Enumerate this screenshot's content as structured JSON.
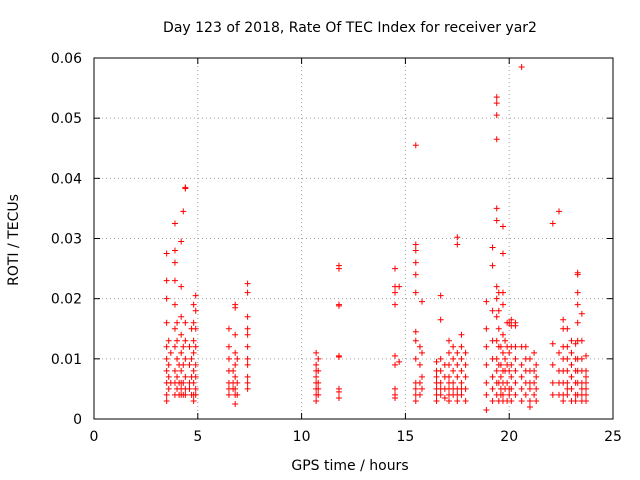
{
  "chart_data": {
    "type": "scatter",
    "title": "Day 123 of 2018, Rate Of TEC Index for receiver yar2",
    "xlabel": "GPS time / hours",
    "ylabel": "ROTI / TECUs",
    "xlim": [
      0,
      25
    ],
    "ylim": [
      0,
      0.06
    ],
    "x_ticks": [
      0,
      5,
      10,
      15,
      20,
      25
    ],
    "x_tick_labels": [
      "0",
      "5",
      "10",
      "15",
      "20",
      "25"
    ],
    "y_ticks": [
      0,
      0.01,
      0.02,
      0.03,
      0.04,
      0.05,
      0.06
    ],
    "y_tick_labels": [
      "0",
      "0.01",
      "0.02",
      "0.03",
      "0.04",
      "0.05",
      "0.06"
    ],
    "grid": true,
    "marker": "plus",
    "series_color": "#ff0000",
    "points": [
      [
        3.5,
        0.0275
      ],
      [
        3.5,
        0.023
      ],
      [
        3.5,
        0.02
      ],
      [
        3.5,
        0.016
      ],
      [
        3.5,
        0.012
      ],
      [
        3.5,
        0.01
      ],
      [
        3.5,
        0.008
      ],
      [
        3.5,
        0.006
      ],
      [
        3.5,
        0.004
      ],
      [
        3.5,
        0.003
      ],
      [
        3.6,
        0.013
      ],
      [
        3.6,
        0.009
      ],
      [
        3.6,
        0.007
      ],
      [
        3.6,
        0.005
      ],
      [
        3.7,
        0.011
      ],
      [
        3.7,
        0.006
      ],
      [
        3.9,
        0.0325
      ],
      [
        3.9,
        0.028
      ],
      [
        3.9,
        0.026
      ],
      [
        3.9,
        0.023
      ],
      [
        3.9,
        0.019
      ],
      [
        3.9,
        0.015
      ],
      [
        3.9,
        0.012
      ],
      [
        3.9,
        0.008
      ],
      [
        3.9,
        0.006
      ],
      [
        3.9,
        0.004
      ],
      [
        4.0,
        0.016
      ],
      [
        4.0,
        0.013
      ],
      [
        4.0,
        0.01
      ],
      [
        4.0,
        0.007
      ],
      [
        4.0,
        0.005
      ],
      [
        4.1,
        0.009
      ],
      [
        4.1,
        0.006
      ],
      [
        4.1,
        0.004
      ],
      [
        4.2,
        0.0295
      ],
      [
        4.2,
        0.022
      ],
      [
        4.2,
        0.017
      ],
      [
        4.2,
        0.014
      ],
      [
        4.2,
        0.011
      ],
      [
        4.2,
        0.008
      ],
      [
        4.2,
        0.006
      ],
      [
        4.2,
        0.005
      ],
      [
        4.2,
        0.004
      ],
      [
        4.3,
        0.0345
      ],
      [
        4.3,
        0.012
      ],
      [
        4.3,
        0.009
      ],
      [
        4.3,
        0.006
      ],
      [
        4.3,
        0.004
      ],
      [
        4.4,
        0.0385
      ],
      [
        4.4,
        0.0383
      ],
      [
        4.4,
        0.016
      ],
      [
        4.4,
        0.013
      ],
      [
        4.4,
        0.01
      ],
      [
        4.4,
        0.007
      ],
      [
        4.4,
        0.005
      ],
      [
        4.4,
        0.004
      ],
      [
        4.6,
        0.012
      ],
      [
        4.6,
        0.009
      ],
      [
        4.6,
        0.006
      ],
      [
        4.6,
        0.005
      ],
      [
        4.7,
        0.015
      ],
      [
        4.7,
        0.01
      ],
      [
        4.7,
        0.007
      ],
      [
        4.7,
        0.004
      ],
      [
        4.8,
        0.019
      ],
      [
        4.8,
        0.016
      ],
      [
        4.8,
        0.013
      ],
      [
        4.8,
        0.011
      ],
      [
        4.8,
        0.008
      ],
      [
        4.8,
        0.006
      ],
      [
        4.8,
        0.004
      ],
      [
        4.8,
        0.003
      ],
      [
        4.9,
        0.0205
      ],
      [
        4.9,
        0.018
      ],
      [
        4.9,
        0.015
      ],
      [
        4.9,
        0.012
      ],
      [
        4.9,
        0.009
      ],
      [
        4.9,
        0.007
      ],
      [
        4.9,
        0.005
      ],
      [
        4.9,
        0.004
      ],
      [
        6.5,
        0.015
      ],
      [
        6.5,
        0.012
      ],
      [
        6.5,
        0.01
      ],
      [
        6.5,
        0.008
      ],
      [
        6.5,
        0.006
      ],
      [
        6.5,
        0.005
      ],
      [
        6.5,
        0.004
      ],
      [
        6.7,
        0.008
      ],
      [
        6.7,
        0.006
      ],
      [
        6.7,
        0.005
      ],
      [
        6.8,
        0.019
      ],
      [
        6.8,
        0.0185
      ],
      [
        6.8,
        0.014
      ],
      [
        6.8,
        0.011
      ],
      [
        6.8,
        0.009
      ],
      [
        6.8,
        0.007
      ],
      [
        6.8,
        0.005
      ],
      [
        6.8,
        0.004
      ],
      [
        6.8,
        0.0025
      ],
      [
        6.9,
        0.01
      ],
      [
        6.9,
        0.006
      ],
      [
        6.9,
        0.004
      ],
      [
        7.4,
        0.0225
      ],
      [
        7.4,
        0.021
      ],
      [
        7.4,
        0.017
      ],
      [
        7.4,
        0.015
      ],
      [
        7.4,
        0.014
      ],
      [
        7.4,
        0.012
      ],
      [
        7.4,
        0.01
      ],
      [
        7.4,
        0.009
      ],
      [
        7.4,
        0.007
      ],
      [
        7.4,
        0.006
      ],
      [
        7.4,
        0.005
      ],
      [
        10.7,
        0.011
      ],
      [
        10.7,
        0.009
      ],
      [
        10.7,
        0.008
      ],
      [
        10.7,
        0.007
      ],
      [
        10.7,
        0.006
      ],
      [
        10.7,
        0.005
      ],
      [
        10.7,
        0.004
      ],
      [
        10.7,
        0.003
      ],
      [
        10.8,
        0.01
      ],
      [
        10.8,
        0.008
      ],
      [
        10.8,
        0.006
      ],
      [
        10.8,
        0.005
      ],
      [
        10.8,
        0.004
      ],
      [
        11.8,
        0.0255
      ],
      [
        11.8,
        0.025
      ],
      [
        11.8,
        0.019
      ],
      [
        11.8,
        0.0188
      ],
      [
        11.8,
        0.0105
      ],
      [
        11.8,
        0.0103
      ],
      [
        11.8,
        0.005
      ],
      [
        11.8,
        0.0045
      ],
      [
        11.8,
        0.0035
      ],
      [
        14.5,
        0.025
      ],
      [
        14.5,
        0.022
      ],
      [
        14.5,
        0.021
      ],
      [
        14.5,
        0.019
      ],
      [
        14.5,
        0.0105
      ],
      [
        14.5,
        0.009
      ],
      [
        14.5,
        0.005
      ],
      [
        14.5,
        0.004
      ],
      [
        14.5,
        0.0035
      ],
      [
        14.7,
        0.022
      ],
      [
        14.7,
        0.0095
      ],
      [
        15.5,
        0.0455
      ],
      [
        15.5,
        0.029
      ],
      [
        15.5,
        0.028
      ],
      [
        15.5,
        0.026
      ],
      [
        15.5,
        0.024
      ],
      [
        15.5,
        0.021
      ],
      [
        15.5,
        0.0145
      ],
      [
        15.5,
        0.013
      ],
      [
        15.5,
        0.01
      ],
      [
        15.5,
        0.006
      ],
      [
        15.5,
        0.005
      ],
      [
        15.5,
        0.004
      ],
      [
        15.5,
        0.003
      ],
      [
        15.7,
        0.012
      ],
      [
        15.7,
        0.009
      ],
      [
        15.7,
        0.006
      ],
      [
        15.7,
        0.004
      ],
      [
        15.8,
        0.0195
      ],
      [
        15.8,
        0.011
      ],
      [
        15.8,
        0.007
      ],
      [
        15.8,
        0.005
      ],
      [
        16.5,
        0.0095
      ],
      [
        16.5,
        0.008
      ],
      [
        16.5,
        0.007
      ],
      [
        16.5,
        0.006
      ],
      [
        16.5,
        0.005
      ],
      [
        16.5,
        0.004
      ],
      [
        16.5,
        0.003
      ],
      [
        16.7,
        0.0205
      ],
      [
        16.7,
        0.0165
      ],
      [
        16.7,
        0.01
      ],
      [
        16.7,
        0.008
      ],
      [
        16.7,
        0.006
      ],
      [
        16.7,
        0.005
      ],
      [
        16.7,
        0.004
      ],
      [
        16.9,
        0.009
      ],
      [
        16.9,
        0.007
      ],
      [
        16.9,
        0.005
      ],
      [
        16.9,
        0.0035
      ],
      [
        17.1,
        0.013
      ],
      [
        17.1,
        0.011
      ],
      [
        17.1,
        0.009
      ],
      [
        17.1,
        0.007
      ],
      [
        17.1,
        0.006
      ],
      [
        17.1,
        0.005
      ],
      [
        17.1,
        0.004
      ],
      [
        17.1,
        0.003
      ],
      [
        17.3,
        0.012
      ],
      [
        17.3,
        0.01
      ],
      [
        17.3,
        0.008
      ],
      [
        17.3,
        0.006
      ],
      [
        17.3,
        0.005
      ],
      [
        17.3,
        0.004
      ],
      [
        17.5,
        0.0302
      ],
      [
        17.5,
        0.029
      ],
      [
        17.5,
        0.011
      ],
      [
        17.5,
        0.009
      ],
      [
        17.5,
        0.007
      ],
      [
        17.5,
        0.005
      ],
      [
        17.5,
        0.004
      ],
      [
        17.5,
        0.003
      ],
      [
        17.7,
        0.014
      ],
      [
        17.7,
        0.012
      ],
      [
        17.7,
        0.01
      ],
      [
        17.7,
        0.008
      ],
      [
        17.7,
        0.006
      ],
      [
        17.7,
        0.005
      ],
      [
        17.7,
        0.004
      ],
      [
        17.9,
        0.011
      ],
      [
        17.9,
        0.009
      ],
      [
        17.9,
        0.007
      ],
      [
        17.9,
        0.005
      ],
      [
        17.9,
        0.003
      ],
      [
        18.9,
        0.0195
      ],
      [
        18.9,
        0.015
      ],
      [
        18.9,
        0.012
      ],
      [
        18.9,
        0.009
      ],
      [
        18.9,
        0.006
      ],
      [
        18.9,
        0.004
      ],
      [
        18.9,
        0.0015
      ],
      [
        19.2,
        0.0285
      ],
      [
        19.2,
        0.0255
      ],
      [
        19.2,
        0.018
      ],
      [
        19.2,
        0.013
      ],
      [
        19.2,
        0.01
      ],
      [
        19.2,
        0.007
      ],
      [
        19.2,
        0.005
      ],
      [
        19.2,
        0.003
      ],
      [
        19.4,
        0.0535
      ],
      [
        19.4,
        0.0525
      ],
      [
        19.4,
        0.0505
      ],
      [
        19.4,
        0.0465
      ],
      [
        19.4,
        0.035
      ],
      [
        19.4,
        0.033
      ],
      [
        19.4,
        0.022
      ],
      [
        19.4,
        0.02
      ],
      [
        19.4,
        0.017
      ],
      [
        19.4,
        0.013
      ],
      [
        19.4,
        0.01
      ],
      [
        19.4,
        0.008
      ],
      [
        19.4,
        0.006
      ],
      [
        19.4,
        0.004
      ],
      [
        19.5,
        0.021
      ],
      [
        19.5,
        0.018
      ],
      [
        19.5,
        0.015
      ],
      [
        19.5,
        0.012
      ],
      [
        19.5,
        0.009
      ],
      [
        19.5,
        0.006
      ],
      [
        19.5,
        0.003
      ],
      [
        19.6,
        0.012
      ],
      [
        19.6,
        0.009
      ],
      [
        19.6,
        0.007
      ],
      [
        19.6,
        0.005
      ],
      [
        19.6,
        0.004
      ],
      [
        19.7,
        0.032
      ],
      [
        19.7,
        0.0275
      ],
      [
        19.7,
        0.021
      ],
      [
        19.7,
        0.019
      ],
      [
        19.7,
        0.014
      ],
      [
        19.7,
        0.011
      ],
      [
        19.7,
        0.008
      ],
      [
        19.7,
        0.006
      ],
      [
        19.7,
        0.004
      ],
      [
        19.7,
        0.003
      ],
      [
        19.8,
        0.013
      ],
      [
        19.8,
        0.01
      ],
      [
        19.8,
        0.008
      ],
      [
        19.8,
        0.005
      ],
      [
        19.9,
        0.016
      ],
      [
        19.9,
        0.012
      ],
      [
        19.9,
        0.009
      ],
      [
        19.9,
        0.006
      ],
      [
        19.9,
        0.003
      ],
      [
        20.0,
        0.016
      ],
      [
        20.0,
        0.011
      ],
      [
        20.0,
        0.008
      ],
      [
        20.0,
        0.005
      ],
      [
        20.0,
        0.004
      ],
      [
        20.1,
        0.0165
      ],
      [
        20.1,
        0.0155
      ],
      [
        20.1,
        0.012
      ],
      [
        20.1,
        0.009
      ],
      [
        20.1,
        0.007
      ],
      [
        20.1,
        0.005
      ],
      [
        20.1,
        0.003
      ],
      [
        20.3,
        0.016
      ],
      [
        20.3,
        0.0155
      ],
      [
        20.3,
        0.012
      ],
      [
        20.3,
        0.01
      ],
      [
        20.3,
        0.008
      ],
      [
        20.3,
        0.006
      ],
      [
        20.3,
        0.004
      ],
      [
        20.6,
        0.0585
      ],
      [
        20.6,
        0.012
      ],
      [
        20.6,
        0.009
      ],
      [
        20.6,
        0.007
      ],
      [
        20.6,
        0.005
      ],
      [
        20.6,
        0.003
      ],
      [
        20.8,
        0.012
      ],
      [
        20.8,
        0.01
      ],
      [
        20.8,
        0.008
      ],
      [
        20.8,
        0.006
      ],
      [
        20.8,
        0.004
      ],
      [
        21.0,
        0.01
      ],
      [
        21.0,
        0.008
      ],
      [
        21.0,
        0.006
      ],
      [
        21.0,
        0.005
      ],
      [
        21.0,
        0.003
      ],
      [
        21.0,
        0.002
      ],
      [
        21.2,
        0.011
      ],
      [
        21.2,
        0.008
      ],
      [
        21.2,
        0.006
      ],
      [
        21.2,
        0.004
      ],
      [
        21.3,
        0.009
      ],
      [
        21.3,
        0.007
      ],
      [
        21.3,
        0.005
      ],
      [
        21.3,
        0.003
      ],
      [
        22.1,
        0.0325
      ],
      [
        22.1,
        0.0125
      ],
      [
        22.1,
        0.009
      ],
      [
        22.1,
        0.006
      ],
      [
        22.1,
        0.004
      ],
      [
        22.4,
        0.0345
      ],
      [
        22.4,
        0.011
      ],
      [
        22.4,
        0.008
      ],
      [
        22.4,
        0.006
      ],
      [
        22.4,
        0.004
      ],
      [
        22.6,
        0.0165
      ],
      [
        22.6,
        0.015
      ],
      [
        22.6,
        0.012
      ],
      [
        22.6,
        0.01
      ],
      [
        22.6,
        0.008
      ],
      [
        22.6,
        0.006
      ],
      [
        22.6,
        0.004
      ],
      [
        22.6,
        0.003
      ],
      [
        22.8,
        0.015
      ],
      [
        22.8,
        0.012
      ],
      [
        22.8,
        0.01
      ],
      [
        22.8,
        0.008
      ],
      [
        22.8,
        0.006
      ],
      [
        22.8,
        0.005
      ],
      [
        22.8,
        0.004
      ],
      [
        23.0,
        0.013
      ],
      [
        23.0,
        0.011
      ],
      [
        23.0,
        0.009
      ],
      [
        23.0,
        0.007
      ],
      [
        23.0,
        0.005
      ],
      [
        23.0,
        0.003
      ],
      [
        23.2,
        0.0125
      ],
      [
        23.2,
        0.01
      ],
      [
        23.2,
        0.008
      ],
      [
        23.2,
        0.006
      ],
      [
        23.2,
        0.004
      ],
      [
        23.2,
        0.003
      ],
      [
        23.3,
        0.0243
      ],
      [
        23.3,
        0.024
      ],
      [
        23.3,
        0.021
      ],
      [
        23.3,
        0.019
      ],
      [
        23.3,
        0.016
      ],
      [
        23.3,
        0.013
      ],
      [
        23.3,
        0.01
      ],
      [
        23.3,
        0.008
      ],
      [
        23.3,
        0.006
      ],
      [
        23.3,
        0.004
      ],
      [
        23.5,
        0.0175
      ],
      [
        23.5,
        0.013
      ],
      [
        23.5,
        0.01
      ],
      [
        23.5,
        0.008
      ],
      [
        23.5,
        0.006
      ],
      [
        23.5,
        0.005
      ],
      [
        23.5,
        0.004
      ],
      [
        23.5,
        0.003
      ],
      [
        23.7,
        0.0105
      ],
      [
        23.7,
        0.008
      ],
      [
        23.7,
        0.007
      ],
      [
        23.7,
        0.006
      ],
      [
        23.7,
        0.005
      ],
      [
        23.7,
        0.004
      ],
      [
        23.7,
        0.003
      ]
    ]
  }
}
